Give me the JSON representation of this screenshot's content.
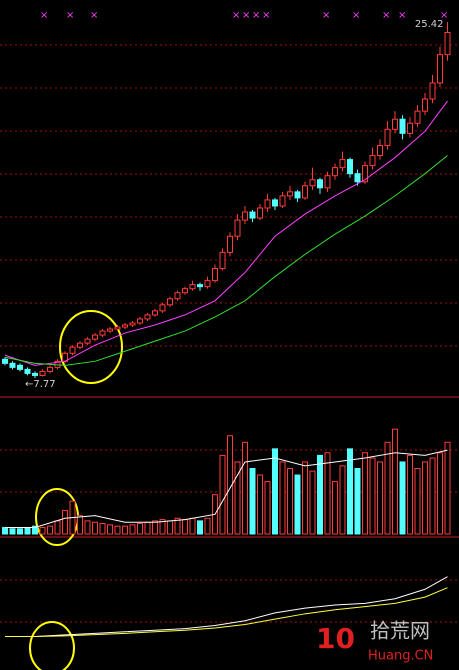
{
  "chart_data": [
    {
      "type": "candlestick",
      "up_color": "#ff3c3c",
      "down_color": "#54ffff",
      "ylim": [
        6.93,
        26.51
      ],
      "candles": [
        [
          8.7,
          8.8,
          8.4,
          8.5
        ],
        [
          8.5,
          8.6,
          8.2,
          8.3
        ],
        [
          8.4,
          8.5,
          8.1,
          8.2
        ],
        [
          8.2,
          8.3,
          7.9,
          8.0
        ],
        [
          8.0,
          8.1,
          7.77,
          7.9
        ],
        [
          7.9,
          8.2,
          7.85,
          8.1
        ],
        [
          8.1,
          8.4,
          8.0,
          8.3
        ],
        [
          8.3,
          8.7,
          8.2,
          8.6
        ],
        [
          8.6,
          9.1,
          8.5,
          9.0
        ],
        [
          9.0,
          9.4,
          8.9,
          9.3
        ],
        [
          9.3,
          9.6,
          9.2,
          9.5
        ],
        [
          9.5,
          9.8,
          9.4,
          9.7
        ],
        [
          9.7,
          10.0,
          9.6,
          9.9
        ],
        [
          9.9,
          10.2,
          9.8,
          10.1
        ],
        [
          10.1,
          10.3,
          10.0,
          10.2
        ],
        [
          10.2,
          10.4,
          10.1,
          10.3
        ],
        [
          10.3,
          10.5,
          10.2,
          10.4
        ],
        [
          10.4,
          10.6,
          10.3,
          10.5
        ],
        [
          10.5,
          10.8,
          10.4,
          10.7
        ],
        [
          10.7,
          11.0,
          10.6,
          10.9
        ],
        [
          10.9,
          11.2,
          10.8,
          11.1
        ],
        [
          11.1,
          11.5,
          11.0,
          11.4
        ],
        [
          11.4,
          11.8,
          11.3,
          11.7
        ],
        [
          11.7,
          12.1,
          11.6,
          12.0
        ],
        [
          12.0,
          12.3,
          11.9,
          12.2
        ],
        [
          12.2,
          12.6,
          12.1,
          12.4
        ],
        [
          12.4,
          12.5,
          12.1,
          12.3
        ],
        [
          12.3,
          12.8,
          12.2,
          12.6
        ],
        [
          12.6,
          13.4,
          12.5,
          13.2
        ],
        [
          13.2,
          14.2,
          13.1,
          14.0
        ],
        [
          14.0,
          15.0,
          13.8,
          14.8
        ],
        [
          14.8,
          15.9,
          14.6,
          15.6
        ],
        [
          15.6,
          16.3,
          15.4,
          16.0
        ],
        [
          16.0,
          16.1,
          15.5,
          15.7
        ],
        [
          15.7,
          16.4,
          15.6,
          16.2
        ],
        [
          16.2,
          16.9,
          16.0,
          16.6
        ],
        [
          16.6,
          16.7,
          16.1,
          16.3
        ],
        [
          16.3,
          17.0,
          16.2,
          16.8
        ],
        [
          16.8,
          17.3,
          16.6,
          17.0
        ],
        [
          17.0,
          17.1,
          16.5,
          16.7
        ],
        [
          16.7,
          17.5,
          16.6,
          17.3
        ],
        [
          17.3,
          18.2,
          17.1,
          17.6
        ],
        [
          17.6,
          17.7,
          16.9,
          17.2
        ],
        [
          17.2,
          18.0,
          17.0,
          17.8
        ],
        [
          17.8,
          18.4,
          17.6,
          18.2
        ],
        [
          18.2,
          19.0,
          18.0,
          18.6
        ],
        [
          18.6,
          18.7,
          17.7,
          17.9
        ],
        [
          17.9,
          18.1,
          17.3,
          17.5
        ],
        [
          17.5,
          18.5,
          17.4,
          18.3
        ],
        [
          18.3,
          19.2,
          18.1,
          18.8
        ],
        [
          18.8,
          19.6,
          18.6,
          19.3
        ],
        [
          19.3,
          20.5,
          19.1,
          20.1
        ],
        [
          20.1,
          21.0,
          19.9,
          20.6
        ],
        [
          20.6,
          20.8,
          19.6,
          19.9
        ],
        [
          19.9,
          20.7,
          19.7,
          20.4
        ],
        [
          20.4,
          21.3,
          20.2,
          21.0
        ],
        [
          21.0,
          21.9,
          20.8,
          21.6
        ],
        [
          21.6,
          22.8,
          21.4,
          22.4
        ],
        [
          22.4,
          24.2,
          22.2,
          23.8
        ],
        [
          23.8,
          25.42,
          23.5,
          24.9
        ]
      ],
      "lines": [
        {
          "color": "#ff40ff",
          "x": [
            0,
            4,
            8,
            12,
            16,
            20,
            24,
            28,
            32,
            36,
            40,
            44,
            48,
            52,
            56,
            59
          ],
          "values": [
            8.9,
            8.4,
            8.6,
            9.4,
            10.0,
            10.4,
            10.9,
            11.6,
            13.0,
            14.8,
            15.9,
            16.8,
            17.6,
            18.7,
            20.0,
            21.5
          ]
        },
        {
          "color": "#30e030",
          "x": [
            0,
            4,
            8,
            12,
            16,
            20,
            24,
            28,
            32,
            36,
            40,
            44,
            48,
            52,
            56,
            59
          ],
          "values": [
            8.8,
            8.5,
            8.4,
            8.6,
            9.1,
            9.6,
            10.1,
            10.8,
            11.6,
            12.8,
            13.9,
            14.9,
            15.8,
            16.8,
            17.9,
            18.8
          ]
        }
      ],
      "annotations": [
        {
          "value": 25.42,
          "label": "25.42"
        },
        {
          "value": 7.77,
          "label": "←7.77"
        }
      ]
    },
    {
      "type": "bar",
      "ylim": [
        0,
        100
      ],
      "values": [
        5,
        4,
        4,
        5,
        6,
        5,
        6,
        10,
        18,
        25,
        14,
        10,
        9,
        8,
        7,
        6,
        6,
        7,
        8,
        9,
        10,
        11,
        10,
        12,
        11,
        12,
        10,
        12,
        30,
        60,
        75,
        55,
        70,
        50,
        45,
        40,
        65,
        55,
        50,
        45,
        55,
        48,
        60,
        62,
        40,
        52,
        65,
        50,
        62,
        58,
        55,
        70,
        80,
        55,
        60,
        50,
        55,
        58,
        62,
        70
      ],
      "lines": [
        {
          "color": "#ffffff",
          "x": [
            0,
            4,
            8,
            12,
            16,
            20,
            24,
            28,
            32,
            36,
            40,
            44,
            48,
            52,
            56,
            59
          ],
          "values": [
            5,
            5,
            12,
            14,
            9,
            9,
            11,
            15,
            55,
            58,
            52,
            55,
            58,
            62,
            60,
            64
          ]
        }
      ]
    },
    {
      "type": "line",
      "ylim": [
        -1,
        3
      ],
      "lines": [
        {
          "color": "#ffffff",
          "x": [
            0,
            4,
            8,
            12,
            16,
            20,
            24,
            28,
            32,
            36,
            40,
            44,
            48,
            52,
            56,
            59
          ],
          "values": [
            0,
            0,
            0.05,
            0.1,
            0.15,
            0.2,
            0.25,
            0.35,
            0.5,
            0.75,
            0.9,
            1.0,
            1.05,
            1.2,
            1.5,
            1.9
          ]
        },
        {
          "color": "#ffff40",
          "x": [
            0,
            4,
            8,
            12,
            16,
            20,
            24,
            28,
            32,
            36,
            40,
            44,
            48,
            52,
            56,
            59
          ],
          "values": [
            0,
            0,
            0.02,
            0.06,
            0.1,
            0.15,
            0.2,
            0.27,
            0.38,
            0.55,
            0.72,
            0.85,
            0.95,
            1.05,
            1.25,
            1.55
          ]
        }
      ]
    }
  ],
  "watermark": {
    "logo": "10",
    "name": "拾荒网",
    "site": "Huang.CN"
  }
}
